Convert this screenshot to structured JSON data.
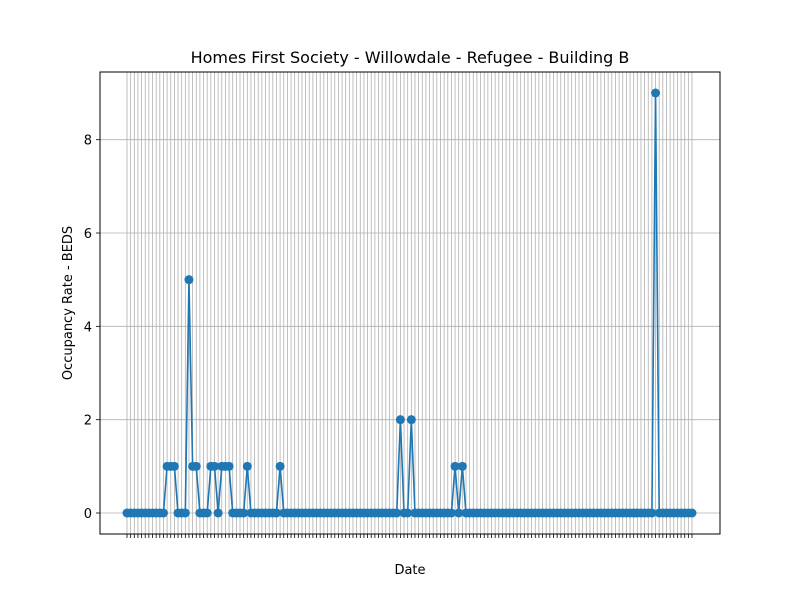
{
  "chart_data": {
    "type": "line",
    "title": "Homes First Society - Willowdale - Refugee - Building B",
    "xlabel": "Date",
    "ylabel": "Occupancy Rate - BEDS",
    "ylim": [
      -0.45,
      9.45
    ],
    "yticks": [
      0,
      2,
      4,
      6,
      8
    ],
    "grid": true,
    "legend": "none",
    "n_points": 156,
    "series": [
      {
        "color": "#1f77b4",
        "marker": "circle",
        "values": [
          0,
          0,
          0,
          0,
          0,
          0,
          0,
          0,
          0,
          0,
          0,
          1,
          1,
          1,
          0,
          0,
          0,
          5,
          1,
          1,
          0,
          0,
          0,
          1,
          1,
          0,
          1,
          1,
          1,
          0,
          0,
          0,
          0,
          1,
          0,
          0,
          0,
          0,
          0,
          0,
          0,
          0,
          1,
          0,
          0,
          0,
          0,
          0,
          0,
          0,
          0,
          0,
          0,
          0,
          0,
          0,
          0,
          0,
          0,
          0,
          0,
          0,
          0,
          0,
          0,
          0,
          0,
          0,
          0,
          0,
          0,
          0,
          0,
          0,
          0,
          2,
          0,
          0,
          2,
          0,
          0,
          0,
          0,
          0,
          0,
          0,
          0,
          0,
          0,
          0,
          1,
          0,
          1,
          0,
          0,
          0,
          0,
          0,
          0,
          0,
          0,
          0,
          0,
          0,
          0,
          0,
          0,
          0,
          0,
          0,
          0,
          0,
          0,
          0,
          0,
          0,
          0,
          0,
          0,
          0,
          0,
          0,
          0,
          0,
          0,
          0,
          0,
          0,
          0,
          0,
          0,
          0,
          0,
          0,
          0,
          0,
          0,
          0,
          0,
          0,
          0,
          0,
          0,
          0,
          0,
          9,
          0,
          0,
          0,
          0,
          0,
          0,
          0,
          0,
          0,
          0
        ]
      }
    ]
  }
}
